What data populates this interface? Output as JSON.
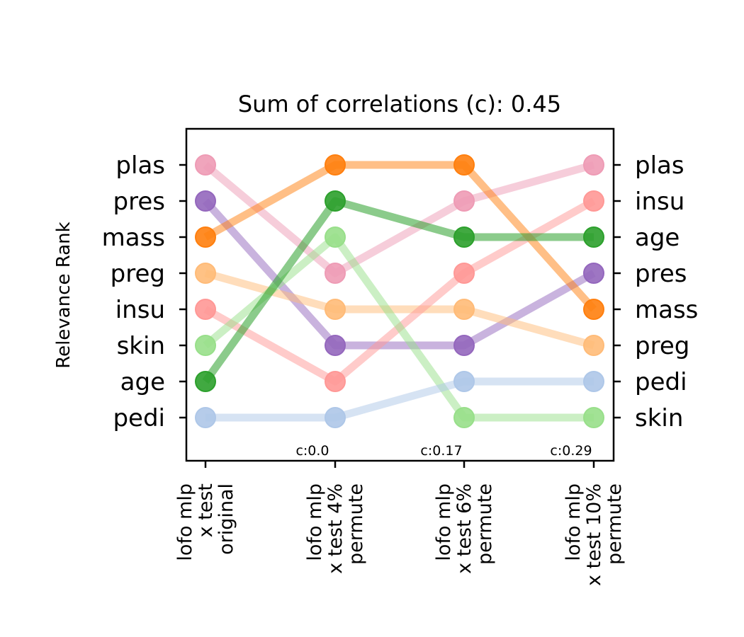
{
  "chart_data": {
    "type": "line",
    "title": "Sum of correlations (c): 0.45",
    "ylabel": "Relevance Rank",
    "columns": [
      {
        "lines": [
          "lofo mlp",
          "x test",
          "original"
        ],
        "c_label": ""
      },
      {
        "lines": [
          "lofo mlp",
          "x test 4%",
          "permute"
        ],
        "c_label": "c:0.0"
      },
      {
        "lines": [
          "lofo mlp",
          "x test 6%",
          "permute"
        ],
        "c_label": "c:0.17"
      },
      {
        "lines": [
          "lofo mlp",
          "x test 10%",
          "permute"
        ],
        "c_label": "c:0.29"
      }
    ],
    "left_ticks": [
      "plas",
      "pres",
      "mass",
      "preg",
      "insu",
      "skin",
      "age",
      "pedi"
    ],
    "right_ticks": [
      "plas",
      "insu",
      "age",
      "pres",
      "mass",
      "preg",
      "pedi",
      "skin"
    ],
    "series": [
      {
        "name": "plas",
        "ranks": [
          1,
          4,
          2,
          1
        ],
        "color": "#ee9bb5",
        "line_alpha": 0.5
      },
      {
        "name": "pres",
        "ranks": [
          2,
          6,
          6,
          4
        ],
        "color": "#9467bd",
        "line_alpha": 0.5
      },
      {
        "name": "mass",
        "ranks": [
          3,
          1,
          1,
          5
        ],
        "color": "#ff7f0e",
        "line_alpha": 0.5
      },
      {
        "name": "preg",
        "ranks": [
          4,
          5,
          5,
          6
        ],
        "color": "#ffbb78",
        "line_alpha": 0.5
      },
      {
        "name": "insu",
        "ranks": [
          5,
          7,
          4,
          2
        ],
        "color": "#ff9896",
        "line_alpha": 0.5
      },
      {
        "name": "skin",
        "ranks": [
          6,
          3,
          8,
          8
        ],
        "color": "#98df8a",
        "line_alpha": 0.5
      },
      {
        "name": "age",
        "ranks": [
          7,
          2,
          3,
          3
        ],
        "color": "#2ca02c",
        "line_alpha": 0.55
      },
      {
        "name": "pedi",
        "ranks": [
          8,
          8,
          7,
          7
        ],
        "color": "#aec7e8",
        "line_alpha": 0.5
      }
    ],
    "ylim": [
      0.1,
      8.9
    ],
    "grid": false,
    "legend": "none"
  }
}
